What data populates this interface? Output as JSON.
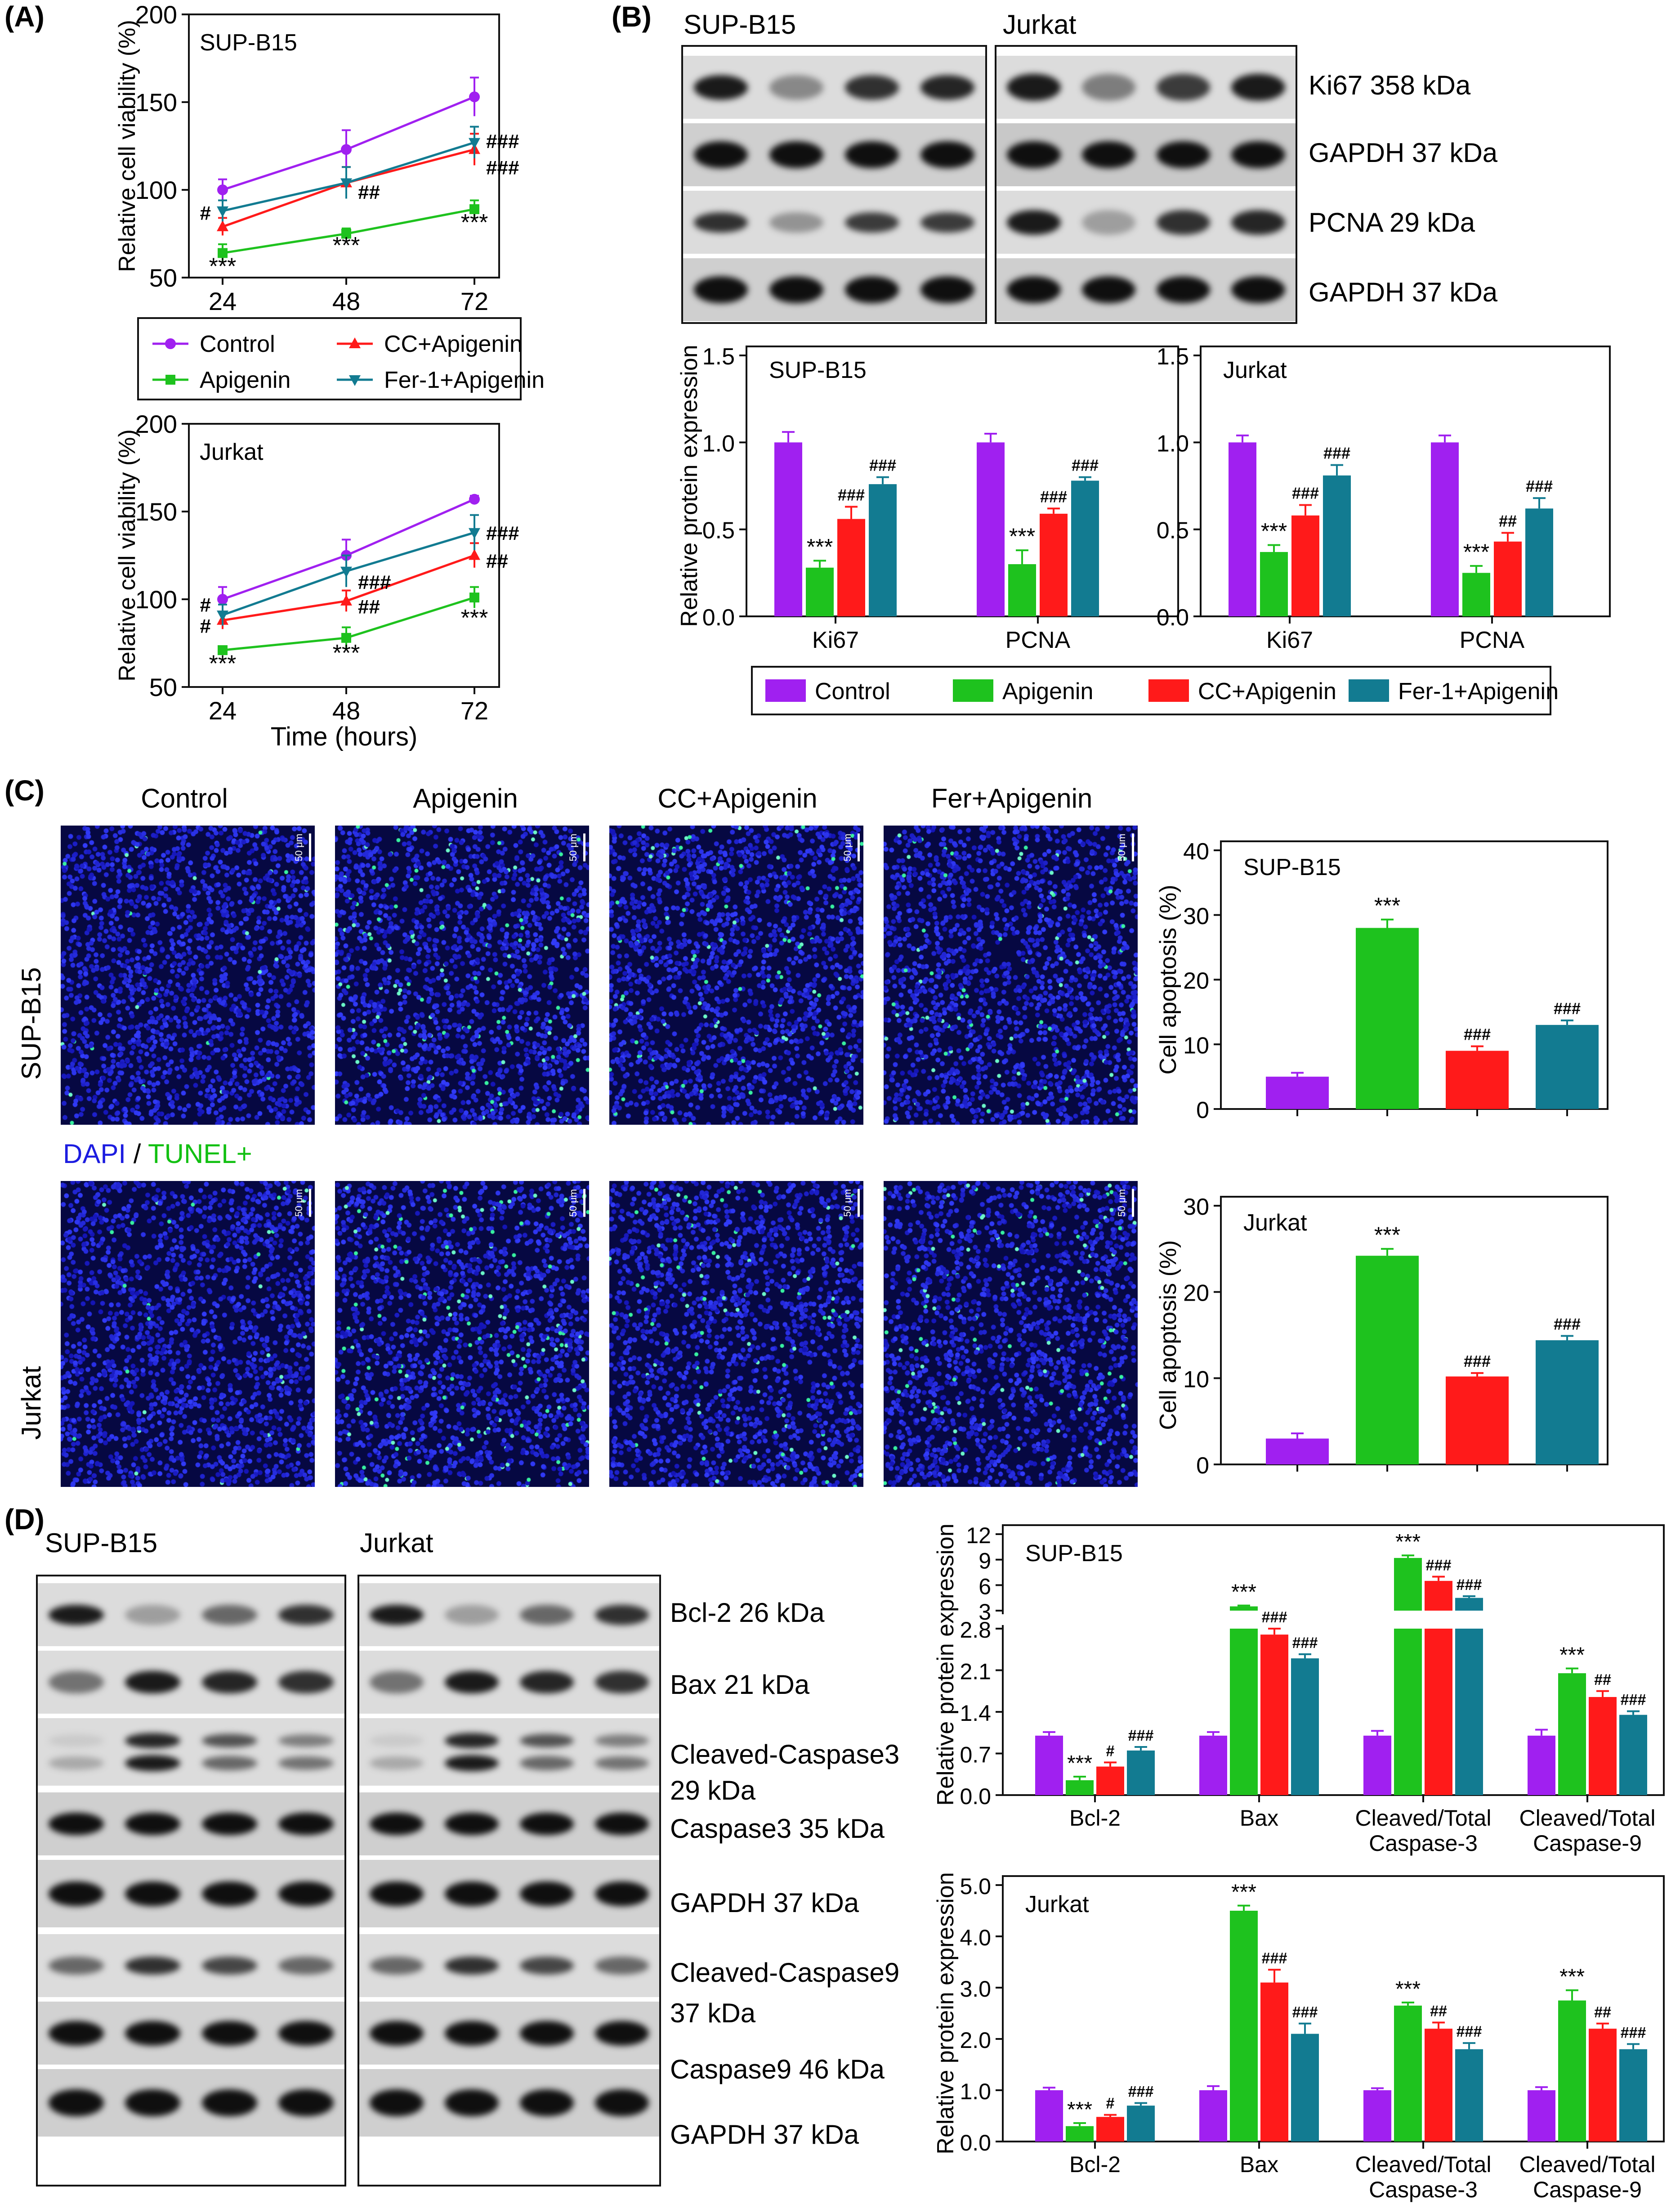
{
  "panels": {
    "A": "(A)",
    "B": "(B)",
    "C": "(C)",
    "D": "(D)"
  },
  "colors": {
    "Control": "#a020f0",
    "Apigenin": "#1ec21e",
    "CC+Apigenin": "#ff1a1a",
    "Fer-1+Apigenin": "#127b91"
  },
  "legend_A": [
    "Control",
    "Apigenin",
    "CC+Apigenin",
    "Fer-1+Apigenin"
  ],
  "legend_B": [
    "Control",
    "Apigenin",
    "CC+Apigenin",
    "Fer-1+Apigenin"
  ],
  "blot_B": {
    "left_title": "SUP-B15",
    "right_title": "Jurkat",
    "labels": [
      "Ki67  358 kDa",
      "GAPDH  37 kDa",
      "PCNA  29 kDa",
      "GAPDH   37 kDa"
    ]
  },
  "panel_C": {
    "columns": [
      "Control",
      "Apigenin",
      "CC+Apigenin",
      "Fer+Apigenin"
    ],
    "rows": [
      "SUP-B15",
      "Jurkat"
    ],
    "stain_dapi": "DAPI",
    "stain_sep": " / ",
    "stain_tunel": "TUNEL+",
    "scale_label": "50 μm"
  },
  "blot_D": {
    "left_title": "SUP-B15",
    "right_title": "Jurkat",
    "labels": [
      "Bcl-2  26 kDa",
      "Bax  21 kDa",
      "Cleaved-Caspase3",
      "29 kDa",
      "Caspase3 35 kDa",
      "GAPDH   37 kDa",
      "Cleaved-Caspase9",
      "37 kDa",
      "Caspase9  46 kDa",
      "GAPDH   37 kDa"
    ]
  },
  "chart_data": [
    {
      "id": "A1",
      "type": "line",
      "inset": "SUP-B15",
      "ylabel": "Relative cell viability (%)",
      "xlabel": "",
      "x": [
        24,
        48,
        72
      ],
      "ylim": [
        50,
        200
      ],
      "yticks": [
        50,
        100,
        150,
        200
      ],
      "series": [
        {
          "name": "Control",
          "values": [
            100,
            123,
            153
          ],
          "err": [
            6,
            11,
            11
          ]
        },
        {
          "name": "Apigenin",
          "values": [
            64,
            75,
            89
          ],
          "err": [
            5,
            3,
            5
          ]
        },
        {
          "name": "CC+Apigenin",
          "values": [
            79,
            104,
            123
          ],
          "err": [
            5,
            9,
            9
          ]
        },
        {
          "name": "Fer-1+Apigenin",
          "values": [
            88,
            104,
            127
          ],
          "err": [
            6,
            9,
            9
          ]
        }
      ],
      "annotations": [
        {
          "x": 24,
          "y": 56,
          "text": "***"
        },
        {
          "x": 48,
          "y": 68,
          "text": "***"
        },
        {
          "x": 72,
          "y": 81,
          "text": "***"
        },
        {
          "x": 24,
          "y": 87,
          "text": "#",
          "side": "left"
        },
        {
          "x": 48,
          "y": 99,
          "text": "##",
          "side": "right"
        },
        {
          "x": 72,
          "y": 128,
          "text": "###",
          "side": "right"
        },
        {
          "x": 72,
          "y": 113,
          "text": "###",
          "side": "right"
        }
      ]
    },
    {
      "id": "A2",
      "type": "line",
      "inset": "Jurkat",
      "ylabel": "Relative cell viability (%)",
      "xlabel": "Time (hours)",
      "x": [
        24,
        48,
        72
      ],
      "ylim": [
        50,
        200
      ],
      "yticks": [
        50,
        100,
        150,
        200
      ],
      "series": [
        {
          "name": "Control",
          "values": [
            100,
            125,
            157
          ],
          "err": [
            7,
            9,
            2
          ]
        },
        {
          "name": "Apigenin",
          "values": [
            71,
            78,
            101
          ],
          "err": [
            2,
            6,
            6
          ]
        },
        {
          "name": "CC+Apigenin",
          "values": [
            88,
            99,
            125
          ],
          "err": [
            5,
            6,
            7
          ]
        },
        {
          "name": "Fer-1+Apigenin",
          "values": [
            91,
            116,
            138
          ],
          "err": [
            6,
            9,
            10
          ]
        }
      ],
      "annotations": [
        {
          "x": 24,
          "y": 63,
          "text": "***"
        },
        {
          "x": 48,
          "y": 69,
          "text": "***"
        },
        {
          "x": 72,
          "y": 89,
          "text": "***"
        },
        {
          "x": 24,
          "y": 97,
          "text": "#",
          "side": "left"
        },
        {
          "x": 24,
          "y": 85,
          "text": "#",
          "side": "left"
        },
        {
          "x": 48,
          "y": 110,
          "text": "###",
          "side": "right"
        },
        {
          "x": 48,
          "y": 96,
          "text": "##",
          "side": "right"
        },
        {
          "x": 72,
          "y": 138,
          "text": "###",
          "side": "right"
        },
        {
          "x": 72,
          "y": 122,
          "text": "##",
          "side": "right"
        }
      ]
    },
    {
      "id": "B1",
      "type": "bar",
      "inset": "SUP-B15",
      "ylabel": "Relative protein expression",
      "ylim": [
        0,
        1.5
      ],
      "yticks": [
        "0.0",
        "0.5",
        "1.0",
        "1.5"
      ],
      "categories": [
        "Ki67",
        "PCNA"
      ],
      "series": [
        {
          "name": "Control",
          "values": [
            1.0,
            1.0
          ],
          "err": [
            0.06,
            0.05
          ]
        },
        {
          "name": "Apigenin",
          "values": [
            0.28,
            0.3
          ],
          "err": [
            0.04,
            0.08
          ]
        },
        {
          "name": "CC+Apigenin",
          "values": [
            0.56,
            0.59
          ],
          "err": [
            0.07,
            0.03
          ]
        },
        {
          "name": "Fer-1+Apigenin",
          "values": [
            0.76,
            0.78
          ],
          "err": [
            0.04,
            0.02
          ]
        }
      ],
      "marks": [
        [
          "",
          "***",
          "###",
          "###"
        ],
        [
          "",
          "***",
          "###",
          "###"
        ]
      ]
    },
    {
      "id": "B2",
      "type": "bar",
      "inset": "Jurkat",
      "ylabel": "",
      "ylim": [
        0,
        1.5
      ],
      "yticks": [
        "0.0",
        "0.5",
        "1.0",
        "1.5"
      ],
      "categories": [
        "Ki67",
        "PCNA"
      ],
      "series": [
        {
          "name": "Control",
          "values": [
            1.0,
            1.0
          ],
          "err": [
            0.04,
            0.04
          ]
        },
        {
          "name": "Apigenin",
          "values": [
            0.37,
            0.25
          ],
          "err": [
            0.04,
            0.04
          ]
        },
        {
          "name": "CC+Apigenin",
          "values": [
            0.58,
            0.43
          ],
          "err": [
            0.06,
            0.05
          ]
        },
        {
          "name": "Fer-1+Apigenin",
          "values": [
            0.81,
            0.62
          ],
          "err": [
            0.06,
            0.06
          ]
        }
      ],
      "marks": [
        [
          "",
          "***",
          "###",
          "###"
        ],
        [
          "",
          "***",
          "##",
          "###"
        ]
      ]
    },
    {
      "id": "C1",
      "type": "bar",
      "inset": "SUP-B15",
      "ylabel": "Cell apoptosis (%)",
      "ylim": [
        0,
        40
      ],
      "yticks": [
        "0",
        "10",
        "20",
        "30",
        "40"
      ],
      "categories": [
        "Control",
        "Apigenin",
        "CC+Apigenin",
        "Fer+Apigenin"
      ],
      "single": true,
      "values": [
        5,
        28,
        9,
        13
      ],
      "err": [
        0.6,
        1.3,
        0.7,
        0.7
      ],
      "marks": [
        "",
        "***",
        "###",
        "###"
      ]
    },
    {
      "id": "C2",
      "type": "bar",
      "inset": "Jurkat",
      "ylabel": "Cell apoptosis (%)",
      "ylim": [
        0,
        30
      ],
      "yticks": [
        "0",
        "10",
        "20",
        "30"
      ],
      "categories": [
        "Control",
        "Apigenin",
        "CC+Apigenin",
        "Fer+Apigenin"
      ],
      "single": true,
      "values": [
        3,
        24.2,
        10.2,
        14.4
      ],
      "err": [
        0.6,
        0.8,
        0.4,
        0.5
      ],
      "marks": [
        "",
        "***",
        "###",
        "###"
      ]
    },
    {
      "id": "D1",
      "type": "bar",
      "inset": "SUP-B15",
      "broken": true,
      "ylabel": "Relative protein expression",
      "ylim_low": [
        0,
        2.8
      ],
      "yticks_low": [
        "0.0",
        "0.7",
        "1.4",
        "2.1",
        "2.8"
      ],
      "ylim_high": [
        3,
        12
      ],
      "yticks_high": [
        "3",
        "6",
        "9",
        "12"
      ],
      "categories": [
        "Bcl-2",
        "Bax",
        "Cleaved/Total\nCaspase-3",
        "Cleaved/Total\nCaspase-9"
      ],
      "series": [
        {
          "name": "Control",
          "values": [
            1.0,
            1.0,
            1.0,
            1.0
          ],
          "err": [
            0.06,
            0.06,
            0.08,
            0.1
          ]
        },
        {
          "name": "Apigenin",
          "values": [
            0.25,
            3.5,
            9.2,
            2.05
          ],
          "err": [
            0.06,
            0.1,
            0.3,
            0.08
          ]
        },
        {
          "name": "CC+Apigenin",
          "values": [
            0.48,
            2.7,
            6.5,
            1.65
          ],
          "err": [
            0.07,
            0.1,
            0.5,
            0.1
          ]
        },
        {
          "name": "Fer-1+Apigenin",
          "values": [
            0.75,
            2.3,
            4.5,
            1.35
          ],
          "err": [
            0.06,
            0.07,
            0.2,
            0.06
          ]
        }
      ],
      "marks": [
        [
          "",
          "***",
          "#",
          "###"
        ],
        [
          "",
          "***",
          "###",
          "###"
        ],
        [
          "",
          "***",
          "###",
          "###"
        ],
        [
          "",
          "***",
          "##",
          "###"
        ]
      ]
    },
    {
      "id": "D2",
      "type": "bar",
      "inset": "Jurkat",
      "ylabel": "Relative protein expression",
      "ylim": [
        0,
        5
      ],
      "yticks": [
        "0.0",
        "1.0",
        "2.0",
        "3.0",
        "4.0",
        "5.0"
      ],
      "categories": [
        "Bcl-2",
        "Bax",
        "Cleaved/Total\nCaspase-3",
        "Cleaved/Total\nCaspase-9"
      ],
      "series": [
        {
          "name": "Control",
          "values": [
            1.0,
            1.0,
            1.0,
            1.0
          ],
          "err": [
            0.05,
            0.08,
            0.04,
            0.06
          ]
        },
        {
          "name": "Apigenin",
          "values": [
            0.3,
            4.5,
            2.65,
            2.75
          ],
          "err": [
            0.06,
            0.1,
            0.06,
            0.2
          ]
        },
        {
          "name": "CC+Apigenin",
          "values": [
            0.48,
            3.1,
            2.2,
            2.2
          ],
          "err": [
            0.04,
            0.25,
            0.12,
            0.1
          ]
        },
        {
          "name": "Fer-1+Apigenin",
          "values": [
            0.7,
            2.1,
            1.8,
            1.8
          ],
          "err": [
            0.05,
            0.2,
            0.12,
            0.1
          ]
        }
      ],
      "marks": [
        [
          "",
          "***",
          "#",
          "###"
        ],
        [
          "",
          "***",
          "###",
          "###"
        ],
        [
          "",
          "***",
          "##",
          "###"
        ],
        [
          "",
          "***",
          "##",
          "###"
        ]
      ]
    }
  ]
}
